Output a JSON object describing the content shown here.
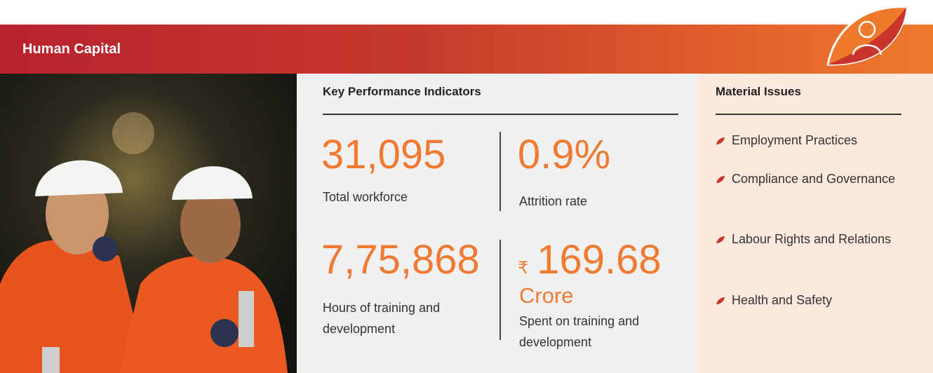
{
  "header": {
    "title": "Human Capital"
  },
  "kpi": {
    "title": "Key Performance Indicators",
    "items": [
      {
        "value": "31,095",
        "label": "Total workforce"
      },
      {
        "value": "0.9%",
        "label": "Attrition rate"
      },
      {
        "value": "7,75,868",
        "label": "Hours of training and development"
      },
      {
        "currency": "₹",
        "value": "169.68",
        "unit": "Crore",
        "label": "Spent on training and development"
      }
    ]
  },
  "material": {
    "title": "Material Issues",
    "items": [
      "Employment Practices",
      "Compliance and Governance",
      "Labour Rights and Relations",
      "Health and Safety"
    ]
  }
}
